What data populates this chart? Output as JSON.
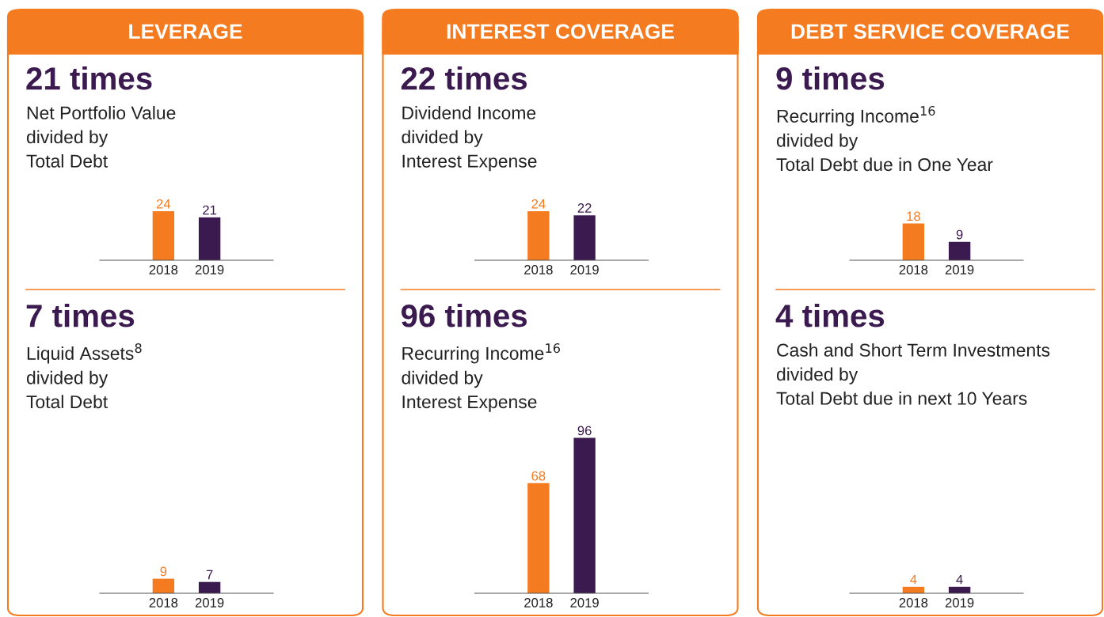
{
  "chart_data": [
    {
      "type": "bar",
      "title": "21 times",
      "subtitle": "Net Portfolio Value\ndivided by\nTotal Debt",
      "annotations": [
        "LEVERAGE"
      ],
      "categories": [
        "2018",
        "2019"
      ],
      "values": [
        24,
        21
      ],
      "colors": [
        "#f47b20",
        "#3b1a4f"
      ],
      "data_labels": true,
      "tick_labels": "x"
    },
    {
      "type": "bar",
      "title": "22 times",
      "subtitle": "Dividend Income\ndivided by\nInterest Expense",
      "annotations": [
        "INTEREST COVERAGE"
      ],
      "categories": [
        "2018",
        "2019"
      ],
      "values": [
        24,
        22
      ],
      "colors": [
        "#f47b20",
        "#3b1a4f"
      ],
      "data_labels": true,
      "tick_labels": "x"
    },
    {
      "type": "bar",
      "title": "9 times",
      "subtitle": "Recurring Income$^{16}$\ndivided by\nTotal Debt due in One Year",
      "annotations": [
        "DEBT SERVICE COVERAGE"
      ],
      "categories": [
        "2018",
        "2019"
      ],
      "values": [
        18,
        9
      ],
      "colors": [
        "#f47b20",
        "#3b1a4f"
      ],
      "data_labels": true,
      "tick_labels": "x"
    },
    {
      "type": "bar",
      "title": "7 times",
      "subtitle": "Liquid Assets$^{8}$\ndivided by\nTotal Debt",
      "categories": [
        "2018",
        "2019"
      ],
      "values": [
        9,
        7
      ],
      "colors": [
        "#f47b20",
        "#3b1a4f"
      ],
      "data_labels": true,
      "tick_labels": "x"
    },
    {
      "type": "bar",
      "title": "96 times",
      "subtitle": "Recurring Income$^{16}$\ndivided by\nInterest Expense",
      "categories": [
        "2018",
        "2019"
      ],
      "values": [
        68,
        96
      ],
      "colors": [
        "#f47b20",
        "#3b1a4f"
      ],
      "data_labels": true,
      "tick_labels": "x"
    },
    {
      "type": "bar",
      "title": "4 times",
      "subtitle": "Cash and Short Term Investments\ndivided by\nTotal Debt due in next 10 Years",
      "categories": [
        "2018",
        "2019"
      ],
      "values": [
        4,
        4
      ],
      "colors": [
        "#f47b20",
        "#3b1a4f"
      ],
      "data_labels": true,
      "tick_labels": "x"
    }
  ]
}
